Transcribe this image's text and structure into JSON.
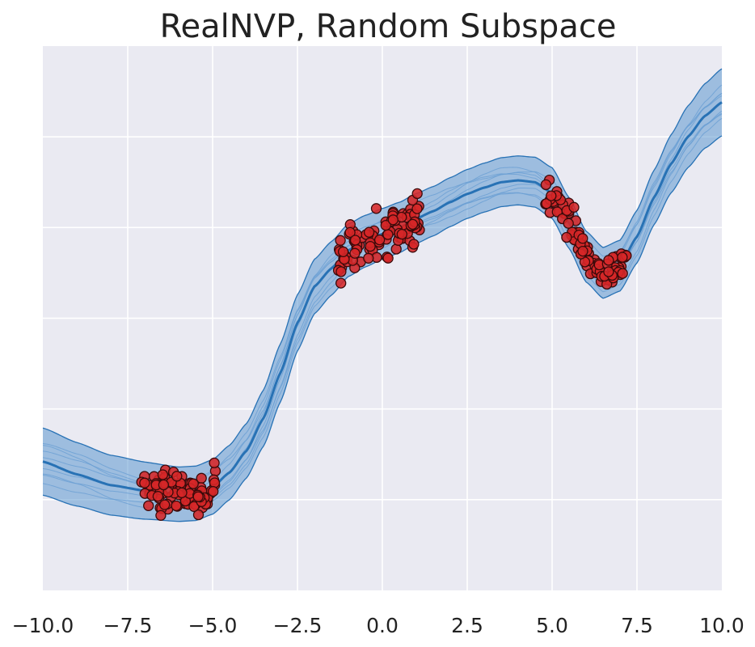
{
  "chart_data": {
    "type": "line",
    "title": "RealNVP, Random Subspace",
    "xlabel": "",
    "ylabel": "",
    "xlim": [
      -10,
      10
    ],
    "ylim": [
      -3.0,
      3.0
    ],
    "grid": true,
    "x_ticks": [
      -10,
      -7.5,
      -5,
      -2.5,
      0,
      2.5,
      5,
      7.5,
      10
    ],
    "x_tick_labels": [
      "−10.0",
      "−7.5",
      "−5.0",
      "−2.5",
      "0.0",
      "2.5",
      "5.0",
      "7.5",
      "10.0"
    ],
    "y_ticks": [
      -2,
      -1,
      0,
      1,
      2
    ],
    "y_tick_labels": [],
    "colors": {
      "background": "#eaeaf2",
      "grid": "#ffffff",
      "band_fill": "#4f8fcb",
      "band_edge": "#2872b5",
      "mean_line": "#2872b5",
      "sample_line": "#6a9fd3",
      "point_fill": "#d62728",
      "point_edge": "#3a0a0a"
    },
    "mean_curve": {
      "x": [
        -10,
        -9,
        -8,
        -7,
        -6,
        -5.5,
        -5,
        -4.5,
        -4,
        -3.5,
        -3,
        -2.5,
        -2,
        -1.5,
        -1,
        -0.5,
        0,
        0.5,
        1,
        1.5,
        2,
        2.5,
        3,
        3.5,
        4,
        4.5,
        5,
        5.5,
        6,
        6.5,
        7,
        7.5,
        8,
        8.5,
        9,
        9.5,
        10
      ],
      "y": [
        -1.58,
        -1.72,
        -1.84,
        -1.9,
        -1.94,
        -1.93,
        -1.86,
        -1.7,
        -1.46,
        -1.1,
        -0.6,
        -0.05,
        0.35,
        0.55,
        0.75,
        0.85,
        0.93,
        1.0,
        1.1,
        1.18,
        1.28,
        1.37,
        1.44,
        1.5,
        1.52,
        1.5,
        1.38,
        1.05,
        0.68,
        0.5,
        0.58,
        0.9,
        1.33,
        1.7,
        2.0,
        2.23,
        2.38
      ]
    },
    "band_halfwidth": {
      "x": [
        -10,
        -8,
        -6,
        -4,
        -3,
        -2,
        0,
        2,
        4,
        5,
        6,
        7,
        8,
        9,
        10
      ],
      "w": [
        0.37,
        0.33,
        0.3,
        0.3,
        0.32,
        0.3,
        0.28,
        0.27,
        0.27,
        0.28,
        0.28,
        0.28,
        0.3,
        0.34,
        0.37
      ]
    },
    "sample_offsets": [
      -0.17,
      -0.1,
      -0.05,
      0.04,
      0.09,
      0.15,
      -0.13,
      0.12
    ],
    "scatter_clusters": [
      {
        "x_range": [
          -7.1,
          -4.9
        ],
        "center": "mean",
        "spread": 0.11,
        "count": 95
      },
      {
        "x_range": [
          -1.3,
          1.1
        ],
        "center": "mean",
        "spread": 0.13,
        "count": 100
      },
      {
        "x_range": [
          4.8,
          7.2
        ],
        "center": "mean",
        "spread": 0.1,
        "count": 95
      }
    ]
  }
}
